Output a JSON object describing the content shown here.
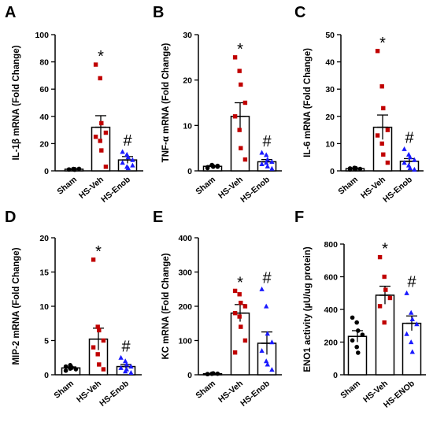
{
  "chart_data": [
    {
      "type": "bar",
      "panel": "A",
      "ylabel": "IL-1β mRNA (Fold Change)",
      "ylim": [
        0,
        100
      ],
      "yticks": [
        0,
        20,
        40,
        60,
        80,
        100
      ],
      "categories": [
        "Sham",
        "HS-Veh",
        "HS-Enob"
      ],
      "means": [
        1.2,
        32,
        8
      ],
      "errors": [
        0.3,
        8.5,
        2.5
      ],
      "points": [
        [
          1,
          1.2,
          0.8,
          1.5,
          1.0,
          1.4,
          1.3
        ],
        [
          78,
          68,
          35,
          28,
          25,
          22,
          15,
          3
        ],
        [
          14,
          12,
          10,
          8,
          6,
          3,
          2,
          4
        ]
      ],
      "annotations": [
        "",
        "*",
        "#"
      ],
      "colors": [
        "#000000",
        "#c00000",
        "#1a1aff"
      ],
      "markers": [
        "circle",
        "square",
        "triangle"
      ]
    },
    {
      "type": "bar",
      "panel": "B",
      "ylabel": "TNF-α mRNA (Fold Change)",
      "ylim": [
        0,
        30
      ],
      "yticks": [
        0,
        10,
        20,
        30
      ],
      "categories": [
        "Sham",
        "HS-Veh",
        "HS-Enob"
      ],
      "means": [
        1,
        12,
        2
      ],
      "errors": [
        0.15,
        3,
        0.5
      ],
      "points": [
        [
          0.8,
          1.2,
          0.9,
          1.1,
          0.6,
          1.3,
          1.0,
          0.9
        ],
        [
          25,
          22,
          19,
          15,
          12,
          9,
          5,
          2.5
        ],
        [
          4,
          3.5,
          2.5,
          2,
          1.5,
          1.8,
          1,
          0.5
        ]
      ],
      "annotations": [
        "",
        "*",
        "#"
      ],
      "colors": [
        "#000000",
        "#c00000",
        "#1a1aff"
      ],
      "markers": [
        "circle",
        "square",
        "triangle"
      ]
    },
    {
      "type": "bar",
      "panel": "C",
      "ylabel": "IL-6 mRNA (Fold Change)",
      "ylim": [
        0,
        50
      ],
      "yticks": [
        0,
        10,
        20,
        30,
        40,
        50
      ],
      "categories": [
        "Sham",
        "HS-Veh",
        "HS-Enob"
      ],
      "means": [
        0.8,
        16,
        3.5
      ],
      "errors": [
        0.2,
        4.5,
        1
      ],
      "points": [
        [
          0.5,
          0.8,
          1.0,
          0.7,
          0.9,
          1.1,
          0.6
        ],
        [
          44,
          31,
          23,
          15,
          13,
          10,
          6,
          3
        ],
        [
          8,
          6,
          5,
          4,
          3,
          2,
          1,
          0.5
        ]
      ],
      "annotations": [
        "",
        "*",
        "#"
      ],
      "colors": [
        "#000000",
        "#c00000",
        "#1a1aff"
      ],
      "markers": [
        "circle",
        "square",
        "triangle"
      ]
    },
    {
      "type": "bar",
      "panel": "D",
      "ylabel": "MIP-2 mRNA (Fold Change)",
      "ylim": [
        0,
        20
      ],
      "yticks": [
        0,
        5,
        10,
        15,
        20
      ],
      "categories": [
        "Sham",
        "HS-Veh",
        "HS-Enob"
      ],
      "means": [
        1,
        5.2,
        1.2
      ],
      "errors": [
        0.15,
        1.6,
        0.3
      ],
      "points": [
        [
          0.6,
          1.4,
          1.0,
          0.8,
          1.2,
          0.9,
          1.1
        ],
        [
          16.8,
          7,
          6.5,
          5,
          4,
          3,
          1.5,
          0.8
        ],
        [
          2.5,
          2,
          1.5,
          1.2,
          1,
          0.5,
          0.8,
          0.3
        ]
      ],
      "annotations": [
        "",
        "*",
        "#"
      ],
      "colors": [
        "#000000",
        "#c00000",
        "#1a1aff"
      ],
      "markers": [
        "circle",
        "square",
        "triangle"
      ]
    },
    {
      "type": "bar",
      "panel": "E",
      "ylabel": "KC mRNA (Fold Change)",
      "ylim": [
        0,
        400
      ],
      "yticks": [
        0,
        100,
        200,
        300,
        400
      ],
      "categories": [
        "Sham",
        "HS-Veh",
        "HS-Enob"
      ],
      "means": [
        3,
        180,
        92
      ],
      "errors": [
        0.5,
        25,
        33
      ],
      "points": [
        [
          2,
          3,
          4,
          3,
          2,
          3,
          4
        ],
        [
          245,
          235,
          210,
          200,
          180,
          170,
          140,
          100,
          65
        ],
        [
          250,
          200,
          120,
          95,
          70,
          40,
          30,
          15
        ]
      ],
      "annotations": [
        "",
        "*",
        "#"
      ],
      "colors": [
        "#000000",
        "#c00000",
        "#1a1aff"
      ],
      "markers": [
        "circle",
        "square",
        "triangle"
      ]
    },
    {
      "type": "bar",
      "panel": "F",
      "ylabel": "ENO1 activity (µU/ug protein)",
      "ylim": [
        0,
        800
      ],
      "yticks": [
        0,
        200,
        400,
        600,
        800
      ],
      "categories": [
        "Sham",
        "HS-Veh",
        "HS-ENOb"
      ],
      "means": [
        235,
        487,
        315
      ],
      "errors": [
        35,
        55,
        45
      ],
      "points": [
        [
          350,
          320,
          270,
          245,
          210,
          170,
          135
        ],
        [
          720,
          600,
          520,
          470,
          420,
          320
        ],
        [
          500,
          380,
          340,
          310,
          250,
          200,
          140
        ]
      ],
      "annotations": [
        "",
        "*",
        "#"
      ],
      "colors": [
        "#000000",
        "#c00000",
        "#1a1aff"
      ],
      "markers": [
        "circle",
        "square",
        "triangle"
      ]
    }
  ]
}
